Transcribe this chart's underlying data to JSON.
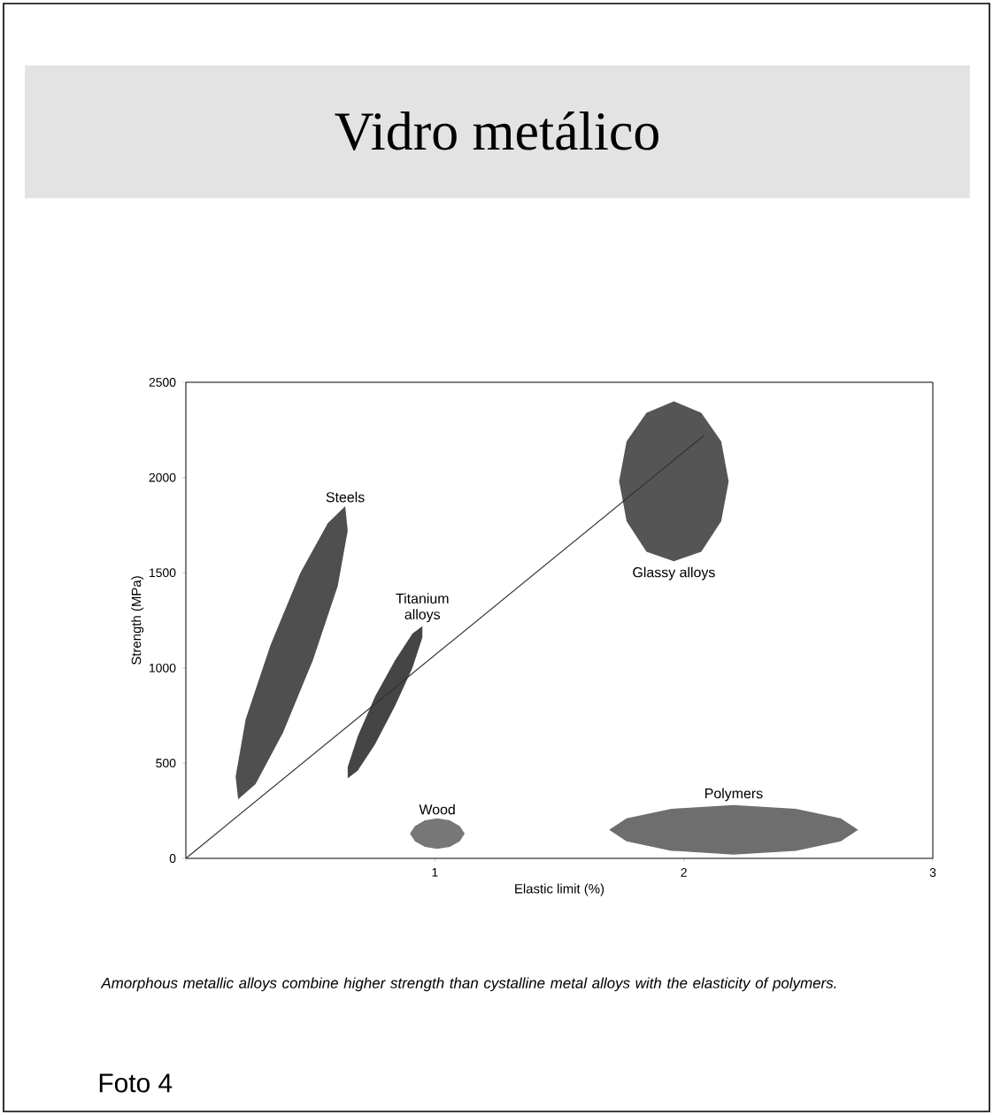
{
  "chart_data": {
    "type": "area",
    "title": "Vidro metálico",
    "xlabel": "Elastic limit (%)",
    "ylabel": "Strength (MPa)",
    "xlim": [
      0,
      3
    ],
    "ylim": [
      0,
      2500
    ],
    "xticks": [
      {
        "value": 0,
        "label": null
      },
      1,
      2,
      3
    ],
    "yticks": [
      0,
      500,
      1000,
      1500,
      2000,
      2500
    ],
    "series": [
      {
        "name": "Steels",
        "color": "#4f4f4f",
        "x": [
          0.64,
          0.65,
          0.61,
          0.51,
          0.39,
          0.28,
          0.21,
          0.2,
          0.24,
          0.34,
          0.46,
          0.57
        ],
        "values": [
          1850,
          1720,
          1430,
          1040,
          660,
          390,
          310,
          430,
          730,
          1120,
          1500,
          1760
        ]
      },
      {
        "name": "Titanium alloys",
        "color": "#454545",
        "x": [
          0.95,
          0.95,
          0.91,
          0.84,
          0.76,
          0.69,
          0.65,
          0.65,
          0.69,
          0.76,
          0.84,
          0.91
        ],
        "values": [
          1220,
          1160,
          1000,
          800,
          600,
          460,
          420,
          480,
          640,
          850,
          1040,
          1180
        ]
      },
      {
        "name": "Wood",
        "color": "#777777",
        "x": [
          1.12,
          1.1,
          1.06,
          1.01,
          0.96,
          0.92,
          0.9,
          0.92,
          0.96,
          1.01,
          1.06,
          1.1
        ],
        "values": [
          130,
          170,
          200,
          210,
          200,
          170,
          130,
          90,
          60,
          50,
          60,
          90
        ]
      },
      {
        "name": "Polymers",
        "color": "#6e6e6e",
        "x": [
          2.7,
          2.63,
          2.45,
          2.2,
          1.95,
          1.77,
          1.7,
          1.77,
          1.95,
          2.2,
          2.45,
          2.63
        ],
        "values": [
          150,
          210,
          260,
          280,
          260,
          210,
          150,
          90,
          40,
          20,
          40,
          90
        ]
      },
      {
        "name": "Glassy alloys",
        "color": "#555555",
        "x": [
          2.18,
          2.15,
          2.07,
          1.96,
          1.85,
          1.77,
          1.74,
          1.77,
          1.85,
          1.96,
          2.07,
          2.15
        ],
        "values": [
          1980,
          2190,
          2340,
          2400,
          2340,
          2190,
          1980,
          1770,
          1610,
          1560,
          1610,
          1770
        ]
      },
      {
        "type": "line",
        "color": "#333333",
        "x": [
          0,
          2.08
        ],
        "values": [
          0,
          2220
        ]
      }
    ],
    "annotations": [
      "Amorphous metallic alloys combine higher strength than cystalline metal alloys with the elasticity of polymers.",
      "Foto 4"
    ]
  }
}
